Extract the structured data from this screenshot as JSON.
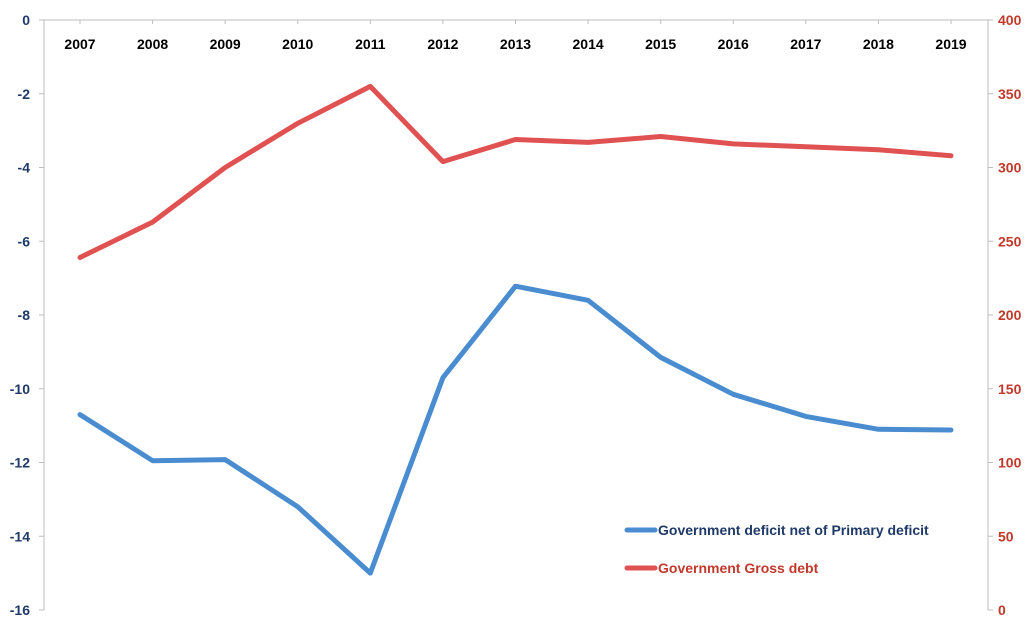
{
  "chart_data": {
    "type": "line",
    "categories": [
      "2007",
      "2008",
      "2009",
      "2010",
      "2011",
      "2012",
      "2013",
      "2014",
      "2015",
      "2016",
      "2017",
      "2018",
      "2019"
    ],
    "left_axis": {
      "ylim": [
        -16,
        0
      ],
      "ticks": [
        0,
        -2,
        -4,
        -6,
        -8,
        -10,
        -12,
        -14,
        -16
      ],
      "color": "#1f3a68"
    },
    "right_axis": {
      "ylim": [
        0,
        400
      ],
      "ticks": [
        400,
        350,
        300,
        250,
        200,
        150,
        100,
        50,
        0
      ],
      "color": "#c0392b"
    },
    "x_axis_position": "top",
    "grid": false,
    "legend_placement": "bottom-right",
    "series": [
      {
        "name": "Government deficit net of Primary deficit",
        "axis": "left",
        "color": "#4a8cd0",
        "values": [
          -10.7,
          -11.95,
          -11.92,
          -13.2,
          -15.0,
          -9.7,
          -7.22,
          -7.6,
          -9.15,
          -10.15,
          -10.75,
          -11.1,
          -11.12
        ]
      },
      {
        "name": "Government Gross debt",
        "axis": "right",
        "color": "#e05252",
        "values": [
          239,
          263,
          300,
          330,
          355,
          304,
          319,
          317,
          321,
          316,
          314,
          312,
          308
        ]
      }
    ]
  }
}
